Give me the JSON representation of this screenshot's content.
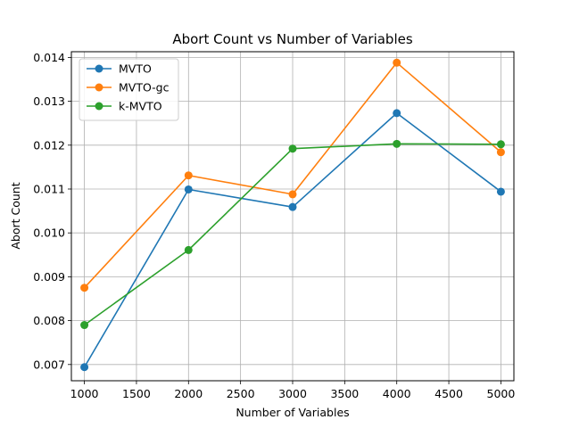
{
  "chart_data": {
    "type": "line",
    "title": "Abort Count vs Number of Variables",
    "xlabel": "Number of Variables",
    "ylabel": "Abort Count",
    "x": [
      1000,
      2000,
      3000,
      4000,
      5000
    ],
    "xlim": [
      875,
      5125
    ],
    "ylim": [
      0.00663,
      0.01413
    ],
    "xticks": [
      1000,
      1500,
      2000,
      2500,
      3000,
      3500,
      4000,
      4500,
      5000
    ],
    "yticks": [
      0.007,
      0.008,
      0.009,
      0.01,
      0.011,
      0.012,
      0.013,
      0.014
    ],
    "ytick_labels": [
      "0.007",
      "0.008",
      "0.009",
      "0.010",
      "0.011",
      "0.012",
      "0.013",
      "0.014"
    ],
    "grid": true,
    "legend_position": "top-left",
    "series": [
      {
        "name": "MVTO",
        "color": "#1f77b4",
        "values": [
          0.00694,
          0.01099,
          0.01059,
          0.01273,
          0.01094
        ]
      },
      {
        "name": "MVTO-gc",
        "color": "#ff7f0e",
        "values": [
          0.00875,
          0.01131,
          0.01088,
          0.01388,
          0.01184
        ]
      },
      {
        "name": "k-MVTO",
        "color": "#2ca02c",
        "values": [
          0.0079,
          0.00961,
          0.01192,
          0.01203,
          0.01202
        ]
      }
    ]
  }
}
